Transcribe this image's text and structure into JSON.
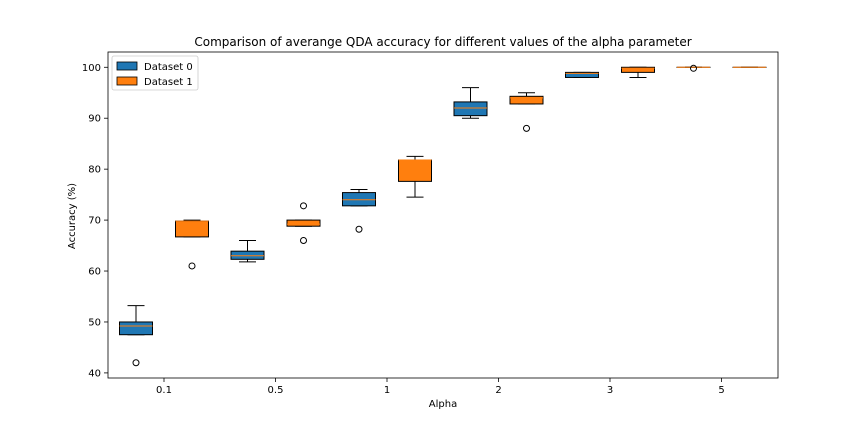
{
  "chart_data": {
    "type": "box",
    "title": "Comparison of averange QDA accuracy for different values of the alpha parameter",
    "xlabel": "Alpha",
    "ylabel": "Accuracy (%)",
    "categories": [
      "0.1",
      "0.5",
      "1",
      "2",
      "3",
      "5"
    ],
    "ylim": [
      39,
      103
    ],
    "yticks": [
      40,
      50,
      60,
      70,
      80,
      90,
      100
    ],
    "grid": false,
    "legend_position": "top-left",
    "series": [
      {
        "name": "Dataset 0",
        "color": "#1f77b4",
        "boxes": [
          {
            "whislo": 47.5,
            "q1": 47.5,
            "med": 49.2,
            "q3": 50.0,
            "whishi": 53.2,
            "fliers": [
              42.0
            ]
          },
          {
            "whislo": 61.8,
            "q1": 62.3,
            "med": 63.0,
            "q3": 63.9,
            "whishi": 66.0,
            "fliers": []
          },
          {
            "whislo": 72.8,
            "q1": 72.8,
            "med": 74.0,
            "q3": 75.4,
            "whishi": 76.0,
            "fliers": [
              68.2
            ]
          },
          {
            "whislo": 90.0,
            "q1": 90.5,
            "med": 92.0,
            "q3": 93.2,
            "whishi": 96.0,
            "fliers": []
          },
          {
            "whislo": 98.0,
            "q1": 98.0,
            "med": 98.8,
            "q3": 99.0,
            "whishi": 99.0,
            "fliers": []
          },
          {
            "whislo": 100.0,
            "q1": 100.0,
            "med": 100.0,
            "q3": 100.0,
            "whishi": 100.0,
            "fliers": [
              99.8
            ]
          }
        ]
      },
      {
        "name": "Dataset 1",
        "color": "#ff7f0e",
        "boxes": [
          {
            "whislo": 66.7,
            "q1": 66.7,
            "med": 69.8,
            "q3": 69.8,
            "whishi": 70.0,
            "fliers": [
              61.0
            ]
          },
          {
            "whislo": 68.8,
            "q1": 68.8,
            "med": 69.2,
            "q3": 70.0,
            "whishi": 70.0,
            "fliers": [
              66.0,
              72.8
            ]
          },
          {
            "whislo": 74.5,
            "q1": 77.6,
            "med": 81.8,
            "q3": 81.8,
            "whishi": 82.5,
            "fliers": []
          },
          {
            "whislo": 92.8,
            "q1": 92.8,
            "med": 94.0,
            "q3": 94.3,
            "whishi": 95.0,
            "fliers": [
              88.0
            ]
          },
          {
            "whislo": 98.0,
            "q1": 99.0,
            "med": 99.8,
            "q3": 100.0,
            "whishi": 100.0,
            "fliers": []
          },
          {
            "whislo": 100.0,
            "q1": 100.0,
            "med": 100.0,
            "q3": 100.0,
            "whishi": 100.0,
            "fliers": []
          }
        ]
      }
    ]
  }
}
